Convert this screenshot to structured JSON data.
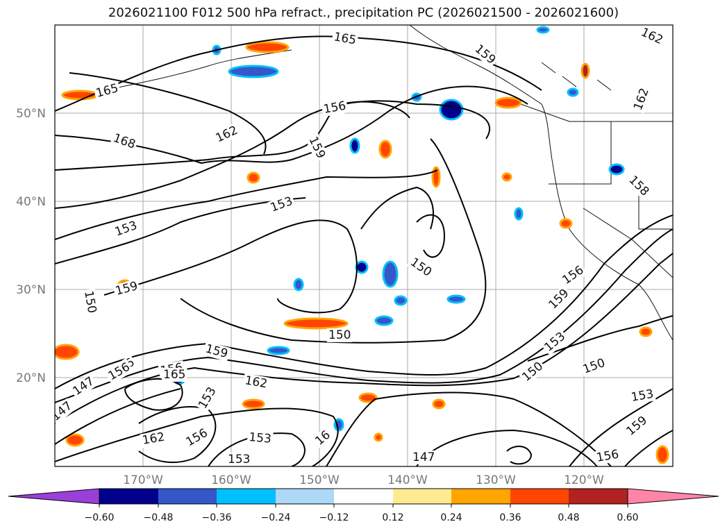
{
  "title": "2026021100 F012 500 hPa refract., precipitation PC (2026021500 - 2026021600)",
  "lat_labels": [
    "50°N",
    "40°N",
    "30°N",
    "20°N"
  ],
  "lon_labels": [
    "170°W",
    "160°W",
    "150°W",
    "140°W",
    "130°W",
    "120°W"
  ],
  "contour_labels": [
    "165",
    "168",
    "162",
    "159",
    "156",
    "153",
    "150",
    "147",
    "159",
    "156",
    "153",
    "150",
    "162",
    "165",
    "159",
    "156",
    "153",
    "150",
    "147",
    "156",
    "159",
    "153",
    "162",
    "156",
    "153",
    "162",
    "150",
    "150",
    "153",
    "159",
    "156",
    "158",
    "162",
    "165",
    "162",
    "159",
    "156",
    "150",
    "147",
    "153",
    "16"
  ],
  "colorbar": {
    "ticks": [
      "−0.60",
      "−0.48",
      "−0.36",
      "−0.24",
      "−0.12",
      "0.12",
      "0.24",
      "0.36",
      "0.48",
      "0.60"
    ],
    "colors": [
      "#9b3fd9",
      "#00008b",
      "#3457c9",
      "#00bfff",
      "#add8f8",
      "#ffffff",
      "#ffeb8f",
      "#ffa500",
      "#ff4500",
      "#b22222",
      "#ff85a8"
    ]
  }
}
